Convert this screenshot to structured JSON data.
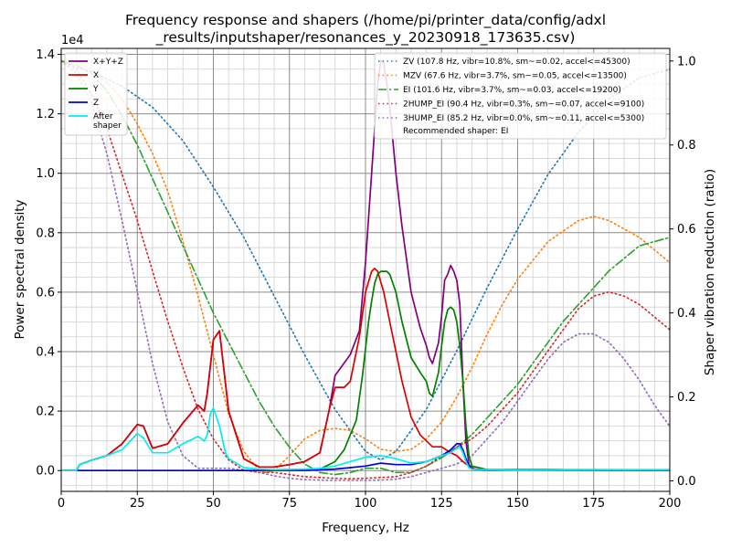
{
  "chart_data": {
    "type": "line",
    "title_line1": "Frequency response and shapers (/home/pi/printer_data/config/adxl",
    "title_line2": "_results/inputshaper/resonances_y_20230918_173635.csv)",
    "xlabel": "Frequency, Hz",
    "ylabel": "Power spectral density",
    "y2label": "Shaper vibration reduction (ratio)",
    "y_exponent_label": "1e4",
    "xlim": [
      0,
      200
    ],
    "ylim": [
      -0.07,
      1.42
    ],
    "y2lim": [
      -0.025,
      1.03
    ],
    "y_scale": "x1e4",
    "grid": true,
    "x_ticks": [
      0,
      25,
      50,
      75,
      100,
      125,
      150,
      175,
      200
    ],
    "x_tick_labels": [
      "0",
      "25",
      "50",
      "75",
      "100",
      "125",
      "150",
      "175",
      "200"
    ],
    "y_ticks": [
      0.0,
      0.2,
      0.4,
      0.6,
      0.8,
      1.0,
      1.2,
      1.4
    ],
    "y_tick_labels": [
      "0.0",
      "0.2",
      "0.4",
      "0.6",
      "0.8",
      "1.0",
      "1.2",
      "1.4"
    ],
    "y2_ticks": [
      0.0,
      0.2,
      0.4,
      0.6,
      0.8,
      1.0
    ],
    "y2_tick_labels": [
      "0.0",
      "0.2",
      "0.4",
      "0.6",
      "0.8",
      "1.0"
    ],
    "legend_left_position": "upper-left",
    "legend_right_position": "upper-right",
    "recommended_text": "Recommended shaper: EI",
    "psd_series": [
      {
        "name": "X+Y+Z",
        "color": "#800080",
        "x": [
          0,
          5,
          6,
          10,
          15,
          20,
          25,
          27,
          30,
          35,
          40,
          45,
          47,
          48,
          50,
          52,
          55,
          60,
          65,
          70,
          75,
          80,
          85,
          88,
          90,
          95,
          98,
          100,
          102,
          103,
          104,
          105,
          106,
          107,
          108,
          110,
          112,
          115,
          118,
          120,
          121,
          122,
          124,
          125,
          126,
          127,
          128,
          129,
          130,
          131,
          132,
          133,
          134,
          135,
          136,
          140,
          150,
          160,
          180,
          200
        ],
        "y": [
          0.0,
          0.0,
          0.02,
          0.035,
          0.05,
          0.09,
          0.155,
          0.15,
          0.075,
          0.09,
          0.16,
          0.22,
          0.2,
          0.26,
          0.44,
          0.47,
          0.2,
          0.04,
          0.012,
          0.012,
          0.02,
          0.03,
          0.06,
          0.2,
          0.32,
          0.39,
          0.47,
          0.7,
          1.0,
          1.15,
          1.3,
          1.38,
          1.37,
          1.3,
          1.22,
          1.0,
          0.82,
          0.6,
          0.48,
          0.42,
          0.38,
          0.36,
          0.43,
          0.52,
          0.64,
          0.66,
          0.69,
          0.67,
          0.64,
          0.56,
          0.3,
          0.1,
          0.02,
          0.008,
          0.005,
          0.003,
          0.003,
          0.003,
          0.002,
          0.002
        ]
      },
      {
        "name": "X",
        "color": "#dd0000",
        "x": [
          0,
          5,
          6,
          10,
          15,
          20,
          25,
          27,
          30,
          35,
          40,
          45,
          47,
          48,
          50,
          52,
          55,
          60,
          65,
          70,
          75,
          80,
          85,
          88,
          90,
          93,
          95,
          98,
          100,
          102,
          103,
          104,
          106,
          108,
          110,
          112,
          115,
          118,
          120,
          122,
          125,
          128,
          130,
          132,
          134,
          136,
          140,
          150,
          160,
          180,
          200
        ],
        "y": [
          0.0,
          0.0,
          0.02,
          0.035,
          0.05,
          0.09,
          0.155,
          0.15,
          0.075,
          0.09,
          0.16,
          0.22,
          0.2,
          0.26,
          0.44,
          0.47,
          0.2,
          0.04,
          0.012,
          0.012,
          0.02,
          0.03,
          0.06,
          0.2,
          0.28,
          0.28,
          0.3,
          0.45,
          0.6,
          0.67,
          0.68,
          0.67,
          0.6,
          0.5,
          0.4,
          0.3,
          0.18,
          0.12,
          0.1,
          0.08,
          0.08,
          0.06,
          0.05,
          0.03,
          0.015,
          0.005,
          0.003,
          0.003,
          0.003,
          0.002,
          0.002
        ]
      },
      {
        "name": "Y",
        "color": "#008000",
        "x": [
          0,
          50,
          70,
          80,
          85,
          88,
          90,
          93,
          95,
          97,
          99,
          101,
          102,
          103,
          104,
          105,
          106,
          107,
          108,
          110,
          112,
          115,
          118,
          120,
          121,
          122,
          124,
          125,
          126,
          127,
          128,
          129,
          130,
          131,
          132,
          133,
          134,
          135,
          140,
          150,
          200
        ],
        "y": [
          0.0,
          0.0,
          0.0,
          0.0,
          0.005,
          0.02,
          0.03,
          0.07,
          0.12,
          0.17,
          0.32,
          0.5,
          0.57,
          0.63,
          0.66,
          0.67,
          0.67,
          0.67,
          0.66,
          0.6,
          0.5,
          0.38,
          0.33,
          0.3,
          0.26,
          0.25,
          0.33,
          0.42,
          0.5,
          0.54,
          0.55,
          0.54,
          0.5,
          0.42,
          0.3,
          0.15,
          0.05,
          0.015,
          0.003,
          0.002,
          0.0
        ]
      },
      {
        "name": "Z",
        "color": "#0000dd",
        "x": [
          0,
          80,
          90,
          95,
          100,
          105,
          110,
          115,
          120,
          125,
          128,
          130,
          131,
          132,
          133,
          134,
          135,
          140,
          200
        ],
        "y": [
          0.0,
          0.0,
          0.005,
          0.01,
          0.015,
          0.025,
          0.02,
          0.02,
          0.03,
          0.05,
          0.07,
          0.09,
          0.09,
          0.07,
          0.04,
          0.015,
          0.005,
          0.002,
          0.0
        ]
      },
      {
        "name": "After\nshaper",
        "color": "#00eeee",
        "x": [
          0,
          5,
          6,
          10,
          15,
          20,
          25,
          27,
          30,
          35,
          40,
          45,
          47,
          48,
          49,
          50,
          52,
          54,
          55,
          60,
          65,
          70,
          75,
          80,
          85,
          90,
          95,
          100,
          105,
          110,
          115,
          120,
          125,
          128,
          130,
          131,
          132,
          133,
          134,
          135,
          140,
          150,
          200
        ],
        "y": [
          0.0,
          0.0,
          0.02,
          0.035,
          0.05,
          0.07,
          0.125,
          0.11,
          0.06,
          0.06,
          0.09,
          0.115,
          0.1,
          0.12,
          0.19,
          0.21,
          0.15,
          0.06,
          0.04,
          0.01,
          0.005,
          0.003,
          0.004,
          0.005,
          0.007,
          0.015,
          0.03,
          0.045,
          0.05,
          0.04,
          0.025,
          0.03,
          0.05,
          0.06,
          0.075,
          0.08,
          0.06,
          0.03,
          0.01,
          0.005,
          0.003,
          0.002,
          0.002
        ]
      }
    ],
    "shaper_series": [
      {
        "name": "ZV (107.8 Hz, vibr=10.8%, sm~=0.02, accel<=45300)",
        "color": "#1f77b4",
        "style": "dotted",
        "x": [
          0,
          5,
          10,
          20,
          30,
          40,
          50,
          60,
          70,
          80,
          90,
          100,
          105,
          110,
          120,
          130,
          140,
          150,
          160,
          170,
          180,
          190,
          200
        ],
        "y": [
          1.0,
          0.985,
          0.975,
          0.94,
          0.89,
          0.81,
          0.7,
          0.58,
          0.44,
          0.3,
          0.17,
          0.07,
          0.05,
          0.07,
          0.17,
          0.31,
          0.46,
          0.6,
          0.73,
          0.83,
          0.91,
          0.96,
          0.98
        ]
      },
      {
        "name": "MZV (67.6 Hz, vibr=3.7%, sm~=0.05, accel<=13500)",
        "color": "#ff7f0e",
        "style": "dotted",
        "x": [
          0,
          5,
          10,
          15,
          20,
          25,
          30,
          35,
          40,
          45,
          50,
          55,
          60,
          65,
          67.6,
          70,
          75,
          80,
          85,
          90,
          95,
          100,
          105,
          110,
          115,
          120,
          125,
          130,
          135,
          140,
          145,
          150,
          160,
          170,
          175,
          180,
          190,
          200
        ],
        "y": [
          1.0,
          1.0,
          0.98,
          0.95,
          0.91,
          0.85,
          0.78,
          0.69,
          0.57,
          0.44,
          0.3,
          0.16,
          0.07,
          0.025,
          0.02,
          0.025,
          0.06,
          0.1,
          0.12,
          0.125,
          0.12,
          0.1,
          0.075,
          0.07,
          0.075,
          0.1,
          0.14,
          0.2,
          0.27,
          0.35,
          0.42,
          0.48,
          0.57,
          0.62,
          0.63,
          0.62,
          0.58,
          0.52
        ]
      },
      {
        "name": "EI (101.6 Hz, vibr=3.7%, sm~=0.03, accel<=19200)",
        "color": "#2ca02c",
        "style": "dashdot",
        "x": [
          0,
          5,
          10,
          15,
          20,
          25,
          30,
          35,
          40,
          45,
          50,
          55,
          60,
          65,
          70,
          75,
          80,
          85,
          90,
          95,
          100,
          105,
          110,
          115,
          120,
          125,
          130,
          135,
          140,
          145,
          150,
          155,
          160,
          165,
          170,
          175,
          180,
          185,
          190,
          195,
          200
        ],
        "y": [
          1.0,
          0.99,
          0.97,
          0.93,
          0.87,
          0.8,
          0.72,
          0.64,
          0.56,
          0.48,
          0.4,
          0.33,
          0.26,
          0.19,
          0.13,
          0.08,
          0.04,
          0.02,
          0.015,
          0.02,
          0.03,
          0.03,
          0.02,
          0.02,
          0.035,
          0.055,
          0.08,
          0.11,
          0.15,
          0.19,
          0.23,
          0.28,
          0.33,
          0.38,
          0.42,
          0.46,
          0.5,
          0.53,
          0.56,
          0.57,
          0.58
        ]
      },
      {
        "name": "2HUMP_EI (90.4 Hz, vibr=0.3%, sm~=0.07, accel<=9100)",
        "color": "#d62728",
        "style": "dotted",
        "x": [
          0,
          5,
          10,
          15,
          20,
          25,
          30,
          35,
          40,
          45,
          50,
          55,
          60,
          65,
          70,
          75,
          80,
          85,
          90,
          95,
          100,
          105,
          110,
          115,
          120,
          125,
          130,
          135,
          140,
          145,
          150,
          155,
          160,
          165,
          170,
          175,
          180,
          185,
          190,
          195,
          200
        ],
        "y": [
          1.0,
          0.98,
          0.92,
          0.84,
          0.73,
          0.62,
          0.5,
          0.38,
          0.27,
          0.17,
          0.1,
          0.05,
          0.025,
          0.02,
          0.02,
          0.015,
          0.01,
          0.008,
          0.006,
          0.005,
          0.006,
          0.008,
          0.01,
          0.02,
          0.035,
          0.06,
          0.08,
          0.1,
          0.13,
          0.17,
          0.21,
          0.26,
          0.31,
          0.36,
          0.41,
          0.44,
          0.45,
          0.44,
          0.42,
          0.39,
          0.36
        ]
      },
      {
        "name": "3HUMP_EI (85.2 Hz, vibr=0.0%, sm~=0.11, accel<=5300)",
        "color": "#9467bd",
        "style": "dotted",
        "x": [
          0,
          5,
          10,
          15,
          20,
          25,
          30,
          35,
          40,
          45,
          50,
          55,
          60,
          65,
          70,
          75,
          80,
          85,
          90,
          95,
          100,
          105,
          110,
          115,
          120,
          125,
          130,
          135,
          140,
          145,
          150,
          155,
          160,
          165,
          170,
          175,
          180,
          185,
          190,
          195,
          200
        ],
        "y": [
          1.0,
          0.97,
          0.9,
          0.78,
          0.62,
          0.45,
          0.28,
          0.14,
          0.06,
          0.03,
          0.03,
          0.03,
          0.025,
          0.02,
          0.012,
          0.006,
          0.003,
          0.002,
          0.001,
          0.001,
          0.001,
          0.002,
          0.004,
          0.01,
          0.02,
          0.03,
          0.04,
          0.06,
          0.1,
          0.14,
          0.19,
          0.24,
          0.29,
          0.33,
          0.35,
          0.35,
          0.33,
          0.29,
          0.24,
          0.18,
          0.13
        ]
      }
    ]
  }
}
